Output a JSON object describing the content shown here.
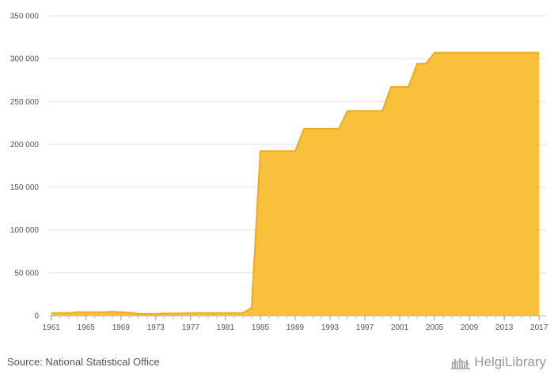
{
  "chart_data": {
    "type": "area",
    "title": "",
    "xlabel": "",
    "ylabel": "",
    "x": [
      1961,
      1962,
      1963,
      1964,
      1965,
      1966,
      1967,
      1968,
      1969,
      1970,
      1971,
      1972,
      1973,
      1974,
      1975,
      1976,
      1977,
      1978,
      1979,
      1980,
      1981,
      1982,
      1983,
      1984,
      1985,
      1986,
      1987,
      1988,
      1989,
      1990,
      1991,
      1992,
      1993,
      1994,
      1995,
      1996,
      1997,
      1998,
      1999,
      2000,
      2001,
      2002,
      2003,
      2004,
      2005,
      2006,
      2007,
      2008,
      2009,
      2010,
      2011,
      2012,
      2013,
      2014,
      2015,
      2016,
      2017
    ],
    "values": [
      3000,
      3000,
      3000,
      4000,
      4000,
      4000,
      4000,
      4500,
      4000,
      3500,
      2000,
      2000,
      2000,
      2500,
      2500,
      2500,
      3000,
      3000,
      3000,
      3000,
      3000,
      3000,
      3000,
      9000,
      192000,
      192000,
      192000,
      192000,
      192000,
      218000,
      218000,
      218000,
      218000,
      218000,
      239000,
      239000,
      239000,
      239000,
      239000,
      267000,
      267000,
      267000,
      294000,
      294000,
      307000,
      307000,
      307000,
      307000,
      307000,
      307000,
      307000,
      307000,
      307000,
      307000,
      307000,
      307000,
      307000
    ],
    "xlim": [
      1960.75,
      2017.8
    ],
    "ylim": [
      0,
      350000
    ],
    "yticks": [
      0,
      50000,
      100000,
      150000,
      200000,
      250000,
      300000,
      350000
    ],
    "ytick_labels": [
      "0",
      "50 000",
      "100 000",
      "150 000",
      "200 000",
      "250 000",
      "300 000",
      "350 000"
    ],
    "xtick_labels": [
      "1961",
      "1965",
      "1969",
      "1973",
      "1977",
      "1981",
      "1985",
      "1989",
      "1993",
      "1997",
      "2001",
      "2005",
      "2009",
      "2013",
      "2017"
    ],
    "xtick_values": [
      1961,
      1965,
      1969,
      1973,
      1977,
      1981,
      1985,
      1989,
      1993,
      1997,
      2001,
      2005,
      2009,
      2013,
      2017
    ],
    "grid": true,
    "fill_color": "#f9c03c",
    "line_color": "#f0ac14"
  },
  "footer": {
    "source": "Source: National Statistical Office",
    "brand": "HelgiLibrary",
    "brand_icon": "helgi-library-logo-icon"
  }
}
